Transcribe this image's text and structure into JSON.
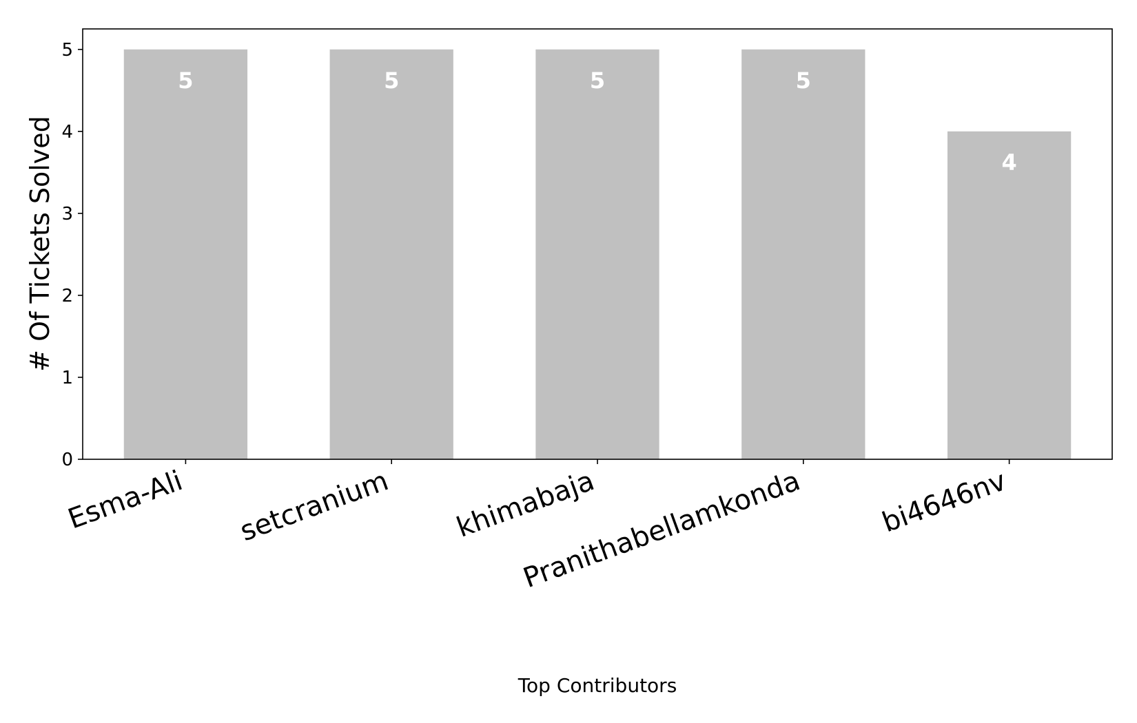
{
  "chart_data": {
    "type": "bar",
    "categories": [
      "Esma-Ali",
      "setcranium",
      "khimabaja",
      "Pranithabellamkonda",
      "bi4646nv"
    ],
    "values": [
      5,
      5,
      5,
      5,
      4
    ],
    "xlabel": "Top Contributors",
    "ylabel": "# Of Tickets Solved",
    "ylim": [
      0,
      5.25
    ],
    "yticks": [
      0,
      1,
      2,
      3,
      4,
      5
    ],
    "grid": false,
    "legend": "none",
    "bar_color": "#c0c0c0",
    "label_color": "#ffffff",
    "axis_color": "#000000"
  }
}
